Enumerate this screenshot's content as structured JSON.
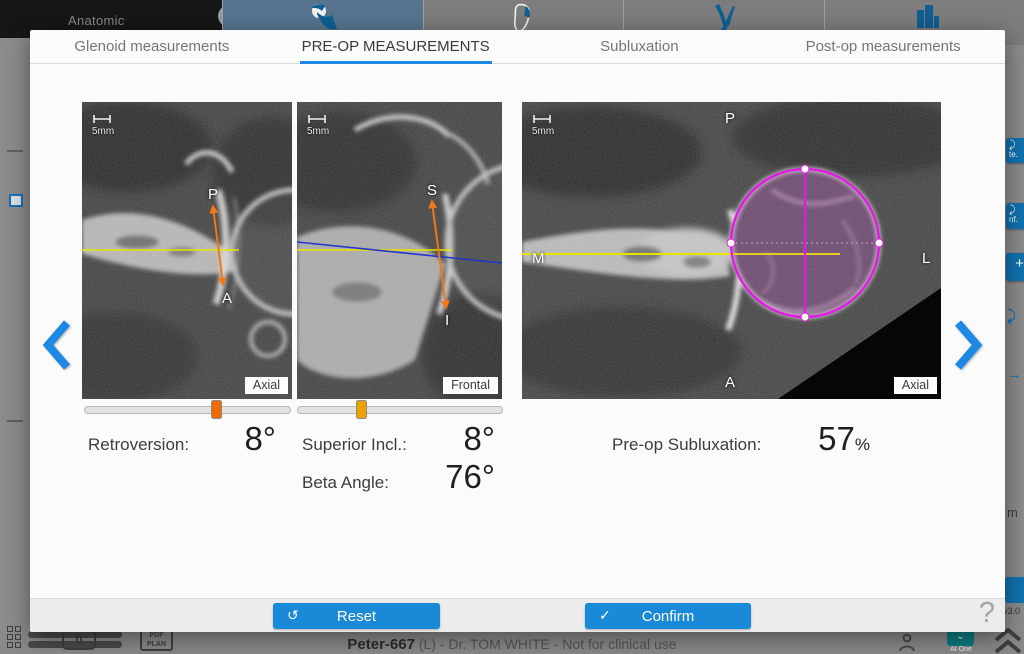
{
  "colors": {
    "accent_blue": "#1989d8",
    "tab_underline": "#1e88e5",
    "slider_axial_thumb": "#ef6a00",
    "slider_frontal_thumb": "#efa100",
    "annotation_yellow": "#e8e400",
    "annotation_orange": "#f07818",
    "annotation_blue": "#2336c9",
    "annotation_magenta": "#e616e6",
    "ai_badge_teal": "#0d7d80"
  },
  "background": {
    "app_menu_label": "Anatomic",
    "right_rail": {
      "button_fragment_1": "te.",
      "button_fragment_2": "nf.",
      "plus": "+",
      "m_fragment": "m",
      "version": "v3.0"
    },
    "bottom_bar": {
      "counter": "0",
      "pdf_line1": "PDF",
      "pdf_line2": "PLAN",
      "patient": "Peter-667",
      "case_info": " (L) - Dr. TOM WHITE - Not for clinical use",
      "ai_badge": "AI One"
    }
  },
  "dialog": {
    "tabs": [
      {
        "label": "Glenoid measurements",
        "active": false
      },
      {
        "label": "PRE-OP MEASUREMENTS",
        "active": true
      },
      {
        "label": "Subluxation",
        "active": false
      },
      {
        "label": "Post-op measurements",
        "active": false
      }
    ],
    "viewports": {
      "axial_left": {
        "scale_label": "5mm",
        "plane_label": "Axial",
        "marker_top": "P",
        "marker_bottom": "A"
      },
      "frontal": {
        "scale_label": "5mm",
        "plane_label": "Frontal",
        "marker_top": "S",
        "marker_bottom": "I"
      },
      "axial_right": {
        "scale_label": "5mm",
        "plane_label": "Axial",
        "marker_top": "P",
        "marker_bottom": "A",
        "marker_left": "M",
        "marker_right": "L"
      }
    },
    "sliders": {
      "axial_percent": 64,
      "frontal_percent": 31
    },
    "measurements": {
      "retroversion_label": "Retroversion:",
      "retroversion_value": "8°",
      "superior_incl_label": "Superior Incl.:",
      "superior_incl_value": "8°",
      "beta_angle_label": "Beta Angle:",
      "beta_angle_value": "76°",
      "subluxation_label": "Pre-op Subluxation:",
      "subluxation_value": "57",
      "subluxation_unit": "%"
    },
    "footer": {
      "reset_label": "Reset",
      "confirm_label": "Confirm",
      "help_glyph": "?"
    }
  }
}
